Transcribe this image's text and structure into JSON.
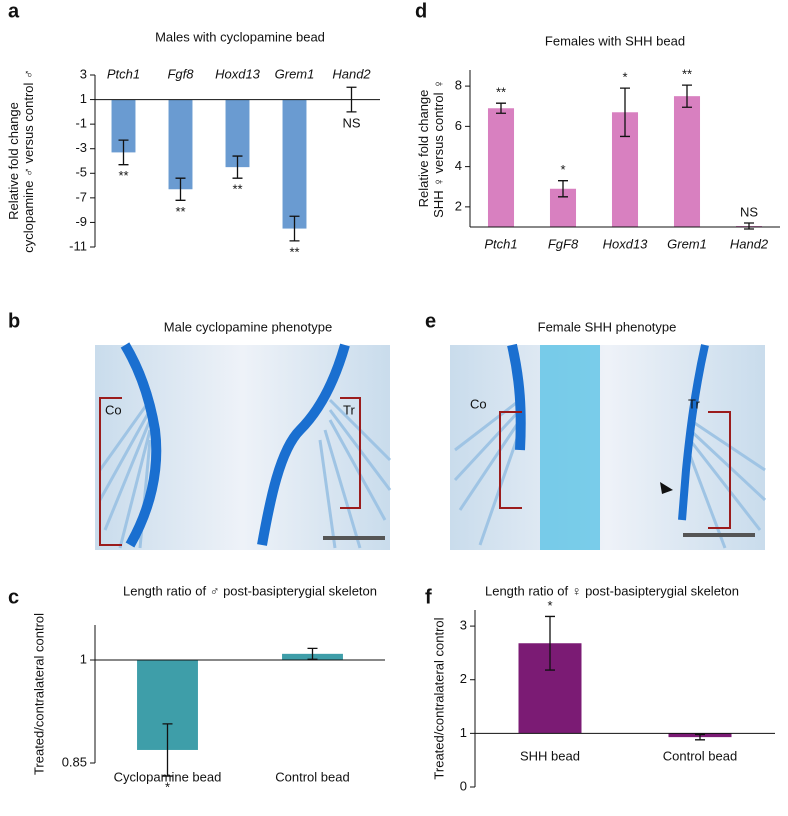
{
  "chart_data": [
    {
      "type": "bar",
      "panel": "a",
      "title": "Males with cyclopamine bead",
      "ylabel": [
        "Relative fold change",
        "cyclopamine ♂ versus control ♂"
      ],
      "categories": [
        "Ptch1",
        "Fgf8",
        "Hoxd13",
        "Grem1",
        "Hand2"
      ],
      "italic_categories": true,
      "values": [
        -3.3,
        -6.3,
        -4.5,
        -9.5,
        1
      ],
      "errors": [
        1,
        0.9,
        0.9,
        1,
        1
      ],
      "annotations": [
        "**",
        "**",
        "**",
        "**",
        "NS"
      ],
      "base": 1,
      "color": "#6a9bd1",
      "ylim": [
        -11,
        3
      ],
      "yticks": [
        3,
        1,
        -1,
        -3,
        -5,
        -7,
        -9,
        -11
      ]
    },
    {
      "type": "bar",
      "panel": "d",
      "title": "Females with SHH bead",
      "ylabel": [
        "Relative fold change",
        "SHH ♀ versus control ♀"
      ],
      "categories": [
        "Ptch1",
        "FgF8",
        "Hoxd13",
        "Grem1",
        "Hand2"
      ],
      "italic_categories": true,
      "values": [
        6.9,
        2.9,
        6.7,
        7.5,
        1.05
      ],
      "errors": [
        0.25,
        0.4,
        1.2,
        0.55,
        0.15
      ],
      "annotations": [
        "**",
        "*",
        "*",
        "**",
        "NS"
      ],
      "base": 1,
      "color": "#d880c0",
      "ylim": [
        1,
        8.8
      ],
      "yticks": [
        2,
        4,
        6,
        8
      ]
    },
    {
      "type": "bar",
      "panel": "c",
      "title": "Length ratio of ♂ post-basipterygial skeleton",
      "ylabel": [
        "Treated/contralateral control"
      ],
      "categories": [
        "Cyclopamine bead",
        "Control bead"
      ],
      "italic_categories": false,
      "values": [
        0.869,
        1.009
      ],
      "errors": [
        0.038,
        0.008
      ],
      "annotations": [
        "*",
        null
      ],
      "base": 1,
      "color": "#3e9ea9",
      "ylim": [
        0.85,
        1.051
      ],
      "yticks": [
        0.85,
        1
      ]
    },
    {
      "type": "bar",
      "panel": "f",
      "title": "Length ratio of ♀ post-basipterygial skeleton",
      "ylabel": [
        "Treated/contralateral control"
      ],
      "categories": [
        "SHH bead",
        "Control bead"
      ],
      "italic_categories": false,
      "values": [
        2.68,
        0.93
      ],
      "errors": [
        0.5,
        0.05
      ],
      "annotations": [
        "*",
        null
      ],
      "base": 1,
      "color": "#7b1b74",
      "ylim": [
        0,
        3.3
      ],
      "yticks": [
        0,
        1,
        2,
        3
      ]
    }
  ],
  "photo_panels": [
    {
      "panel": "b",
      "title": "Male cyclopamine phenotype",
      "labels": [
        "Co",
        "Tr"
      ]
    },
    {
      "panel": "e",
      "title": "Female SHH phenotype",
      "labels": [
        "Co",
        "Tr"
      ]
    }
  ]
}
